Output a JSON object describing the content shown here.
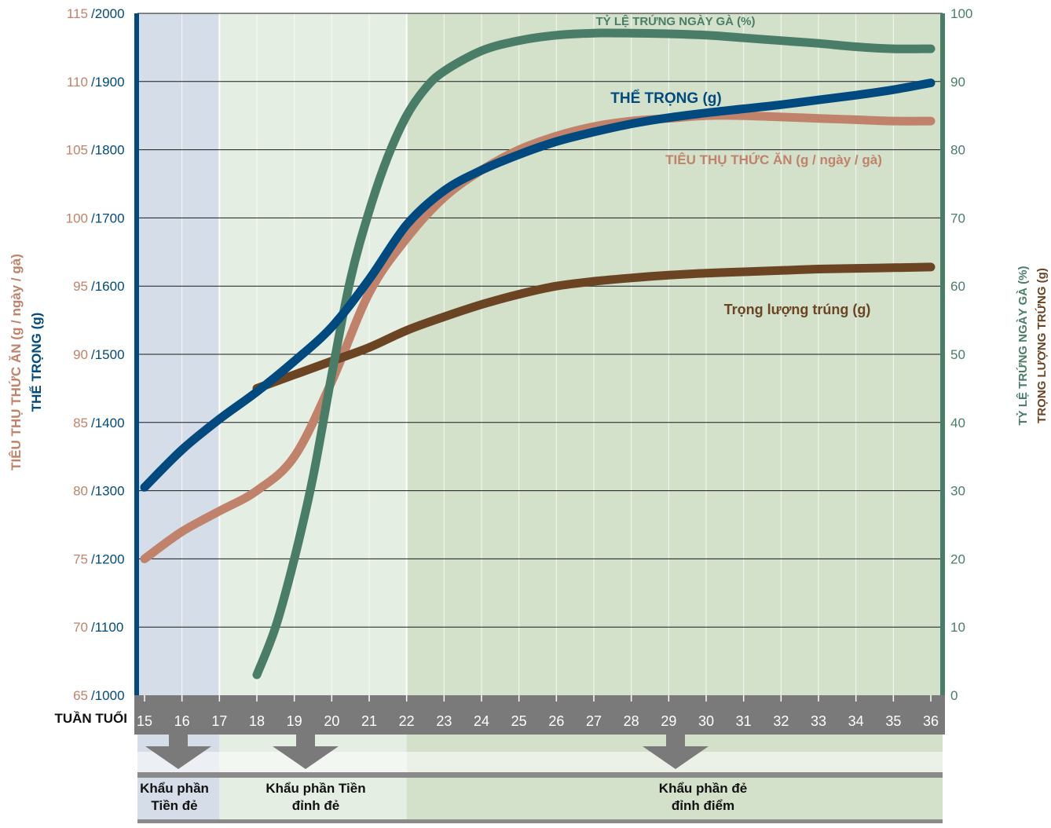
{
  "chart_data": {
    "type": "line",
    "x_axis_label": "TUẦN TUỔI",
    "x": [
      15,
      16,
      17,
      18,
      19,
      20,
      21,
      22,
      23,
      24,
      25,
      26,
      27,
      28,
      29,
      30,
      31,
      32,
      33,
      34,
      35,
      36
    ],
    "left_axis": {
      "label_feed": "TIÊU THỤ THỨC ĂN (g / ngày / gà)",
      "label_weight": "THỂ TRỌNG (g)",
      "feed_ticks": [
        "65",
        "70",
        "75",
        "80",
        "85",
        "90",
        "95",
        "100",
        "105",
        "110",
        "115"
      ],
      "weight_ticks": [
        "/1000",
        "/1100",
        "/1200",
        "/1300",
        "/1400",
        "/1500",
        "/1600",
        "/1700",
        "/1800",
        "/1900",
        "/2000"
      ],
      "feed_range": [
        65,
        115
      ],
      "weight_range": [
        1000,
        2000
      ]
    },
    "right_axis": {
      "label_production": "TỶ LỆ TRỨNG NGÀY GÀ (%)",
      "label_egg_weight": "TRỌNG LƯỢNG TRỨNG (g)",
      "ticks": [
        "0",
        "10",
        "20",
        "30",
        "40",
        "50",
        "60",
        "70",
        "80",
        "90",
        "100"
      ],
      "range": [
        0,
        100
      ]
    },
    "series": [
      {
        "name": "THỂ TRỌNG (g)",
        "axis": "weight",
        "color": "#004a7f",
        "x": [
          15,
          16,
          17,
          18,
          19,
          20,
          21,
          22,
          23,
          24,
          25,
          26,
          27,
          28,
          29,
          30,
          31,
          32,
          33,
          34,
          35,
          36
        ],
        "values": [
          1305,
          1360,
          1405,
          1445,
          1490,
          1540,
          1610,
          1690,
          1740,
          1770,
          1793,
          1812,
          1826,
          1838,
          1847,
          1854,
          1860,
          1866,
          1873,
          1880,
          1888,
          1898
        ]
      },
      {
        "name": "TIÊU THỤ THỨC ĂN (g / ngày / gà)",
        "axis": "feed",
        "color": "#c0826a",
        "x": [
          15,
          16,
          17,
          18,
          19,
          20,
          21,
          22,
          23,
          24,
          25,
          26,
          27,
          28,
          29,
          30,
          31,
          32,
          33,
          34,
          35,
          36
        ],
        "values": [
          75,
          77,
          78.5,
          80,
          82.5,
          88,
          94.5,
          98.5,
          101.5,
          103.5,
          105,
          106,
          106.7,
          107.1,
          107.3,
          107.5,
          107.5,
          107.4,
          107.3,
          107.2,
          107.1,
          107.1
        ]
      },
      {
        "name": "TỶ LỆ TRỨNG NGÀY GÀ (%)",
        "axis": "right",
        "color": "#4a7d68",
        "x": [
          18,
          18.5,
          19,
          19.5,
          20,
          20.5,
          21,
          21.5,
          22,
          22.5,
          23,
          24,
          25,
          26,
          27,
          28,
          29,
          30,
          31,
          32,
          33,
          34,
          35,
          36
        ],
        "values": [
          3,
          10,
          20,
          32,
          47,
          61,
          71,
          79,
          85,
          89,
          91.5,
          94.5,
          96,
          96.8,
          97.1,
          97.1,
          97,
          96.8,
          96.4,
          96,
          95.6,
          95.1,
          94.8,
          94.8
        ]
      },
      {
        "name": "Trọng lượng trúng (g)",
        "axis": "right",
        "color": "#6b4423",
        "x": [
          18,
          19,
          20,
          21,
          22,
          23,
          24,
          25,
          26,
          27,
          28,
          29,
          30,
          31,
          32,
          33,
          34,
          35,
          36
        ],
        "values": [
          45,
          47,
          49,
          51,
          53.5,
          55.5,
          57.3,
          58.8,
          60,
          60.7,
          61.2,
          61.6,
          61.9,
          62.1,
          62.3,
          62.5,
          62.6,
          62.7,
          62.8
        ]
      }
    ],
    "phases": [
      {
        "label_line1": "Khẩu phần",
        "label_line2": "Tiền đẻ",
        "from": 15,
        "to": 17,
        "color": "#d4dde8"
      },
      {
        "label_line1": "Khẩu phần Tiền",
        "label_line2": "đỉnh đẻ",
        "from": 17,
        "to": 22,
        "color": "#e5eee2"
      },
      {
        "label_line1": "Khẩu phần đẻ",
        "label_line2": "đỉnh điểm",
        "from": 22,
        "to": 36.3,
        "color": "#d3e0ca"
      }
    ],
    "colors": {
      "left_axis_bar": "#004a7f",
      "right_axis_bar": "#4a7d68",
      "feed_tick_color": "#c0826a",
      "weight_tick_color": "#004a7f",
      "right_tick_color": "#4a7d68",
      "arrow_bar": "#7a7a7a"
    },
    "grid": true
  }
}
